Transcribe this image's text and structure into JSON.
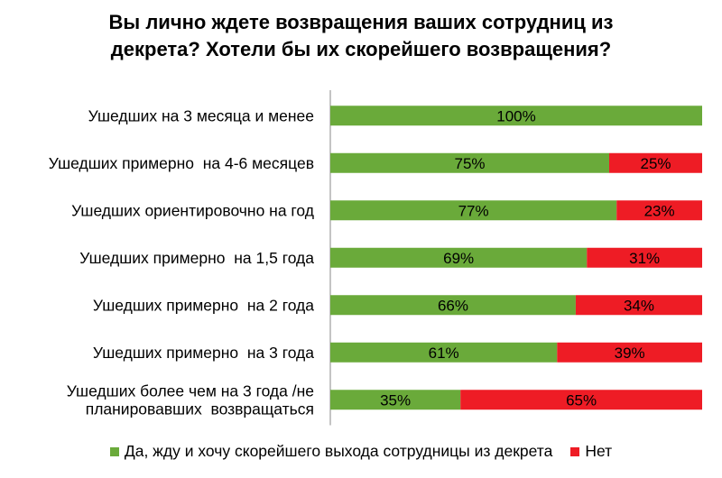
{
  "chart_data": {
    "type": "bar",
    "orientation": "horizontal",
    "stacked": true,
    "title": "Вы лично ждете возвращения ваших сотрудниц из декрета? Хотели бы их скорейшего возвращения?",
    "title_lines": [
      "Вы лично ждете возвращения ваших сотрудниц из",
      "декрета? Хотели бы их скорейшего возвращения?"
    ],
    "categories": [
      [
        "Ушедших на 3 месяца и менее"
      ],
      [
        "Ушедших примерно  на 4-6 месяцев"
      ],
      [
        "Ушедших ориентировочно на год"
      ],
      [
        "Ушедших примерно  на 1,5 года"
      ],
      [
        "Ушедших примерно  на 2 года"
      ],
      [
        "Ушедших примерно  на 3 года"
      ],
      [
        "Ушедших более чем на 3 года /не",
        "планировавших  возвращаться"
      ]
    ],
    "series": [
      {
        "name": "Да, жду и хочу скорейшего выхода сотрудницы из декрета",
        "color": "#6aaa3a",
        "values": [
          100,
          75,
          77,
          69,
          66,
          61,
          35
        ],
        "labels": [
          "100%",
          "75%",
          "77%",
          "69%",
          "66%",
          "61%",
          "35%"
        ]
      },
      {
        "name": "Нет",
        "color": "#ee1c25",
        "values": [
          0,
          25,
          23,
          31,
          34,
          39,
          65
        ],
        "labels": [
          "",
          "25%",
          "23%",
          "31%",
          "34%",
          "39%",
          "65%"
        ]
      }
    ],
    "xlim": [
      0,
      100
    ],
    "grid": false,
    "legend_position": "bottom"
  }
}
